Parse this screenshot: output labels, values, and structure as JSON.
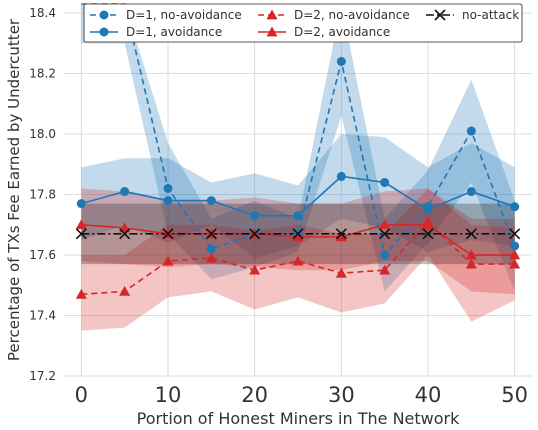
{
  "chart_data": {
    "type": "line",
    "title": "",
    "xlabel": "Portion of Honest Miners in The Network",
    "ylabel": "Percentage of TXs Fee Earned by Undercutter",
    "x": [
      0,
      5,
      10,
      15,
      20,
      25,
      30,
      35,
      40,
      45,
      50
    ],
    "x_ticks": [
      "0",
      "10",
      "20",
      "30",
      "40",
      "50"
    ],
    "y_ticks": [
      "17.2",
      "17.4",
      "17.6",
      "17.8",
      "18.0",
      "18.2",
      "18.4"
    ],
    "xlim": [
      -2,
      52
    ],
    "ylim": [
      17.2,
      18.43
    ],
    "grid": true,
    "legend_position": "top",
    "series": [
      {
        "name": "D=1, no-avoidance",
        "color": "#1f77b4",
        "line_style": "dashed",
        "marker": "circle",
        "values": [
          18.45,
          18.45,
          17.82,
          17.62,
          17.67,
          17.67,
          18.24,
          17.6,
          17.76,
          18.01,
          17.63
        ],
        "band_upper": [
          18.45,
          18.45,
          17.97,
          17.72,
          17.78,
          17.72,
          18.45,
          17.72,
          17.88,
          18.18,
          17.78
        ],
        "band_lower": [
          18.3,
          18.3,
          17.67,
          17.52,
          17.56,
          17.61,
          18.06,
          17.48,
          17.64,
          17.84,
          17.48
        ]
      },
      {
        "name": "D=1, avoidance",
        "color": "#1f77b4",
        "line_style": "solid",
        "marker": "circle",
        "values": [
          17.77,
          17.81,
          17.78,
          17.78,
          17.73,
          17.73,
          17.86,
          17.84,
          17.75,
          17.81,
          17.76
        ],
        "band_upper": [
          17.89,
          17.92,
          17.92,
          17.84,
          17.87,
          17.83,
          18.0,
          17.99,
          17.89,
          17.97,
          17.89
        ],
        "band_lower": [
          17.65,
          17.7,
          17.64,
          17.7,
          17.59,
          17.63,
          17.72,
          17.69,
          17.61,
          17.65,
          17.63
        ]
      },
      {
        "name": "D=2, no-avoidance",
        "color": "#d62728",
        "line_style": "dashed",
        "marker": "triangle",
        "values": [
          17.47,
          17.48,
          17.58,
          17.59,
          17.55,
          17.58,
          17.54,
          17.55,
          17.71,
          17.57,
          17.57
        ],
        "band_upper": [
          17.6,
          17.6,
          17.7,
          17.7,
          17.68,
          17.7,
          17.67,
          17.67,
          17.82,
          17.7,
          17.69
        ],
        "band_lower": [
          17.35,
          17.36,
          17.46,
          17.48,
          17.42,
          17.46,
          17.41,
          17.44,
          17.6,
          17.38,
          17.45
        ]
      },
      {
        "name": "D=2, avoidance",
        "color": "#d62728",
        "line_style": "solid",
        "marker": "triangle",
        "values": [
          17.7,
          17.69,
          17.67,
          17.67,
          17.67,
          17.66,
          17.66,
          17.7,
          17.7,
          17.6,
          17.6
        ],
        "band_upper": [
          17.82,
          17.81,
          17.78,
          17.78,
          17.79,
          17.77,
          17.77,
          17.81,
          17.82,
          17.72,
          17.72
        ],
        "band_lower": [
          17.58,
          17.57,
          17.56,
          17.57,
          17.56,
          17.55,
          17.55,
          17.58,
          17.58,
          17.48,
          17.47
        ]
      },
      {
        "name": "no-attack",
        "color": "#111111",
        "line_style": "dashdot",
        "marker": "x",
        "values": [
          17.67,
          17.67,
          17.67,
          17.67,
          17.67,
          17.67,
          17.67,
          17.67,
          17.67,
          17.67,
          17.67
        ],
        "band_upper": [
          17.77,
          17.77,
          17.77,
          17.77,
          17.77,
          17.77,
          17.77,
          17.77,
          17.77,
          17.77,
          17.77
        ],
        "band_lower": [
          17.57,
          17.57,
          17.57,
          17.57,
          17.57,
          17.57,
          17.57,
          17.57,
          17.57,
          17.57,
          17.57
        ]
      }
    ]
  }
}
